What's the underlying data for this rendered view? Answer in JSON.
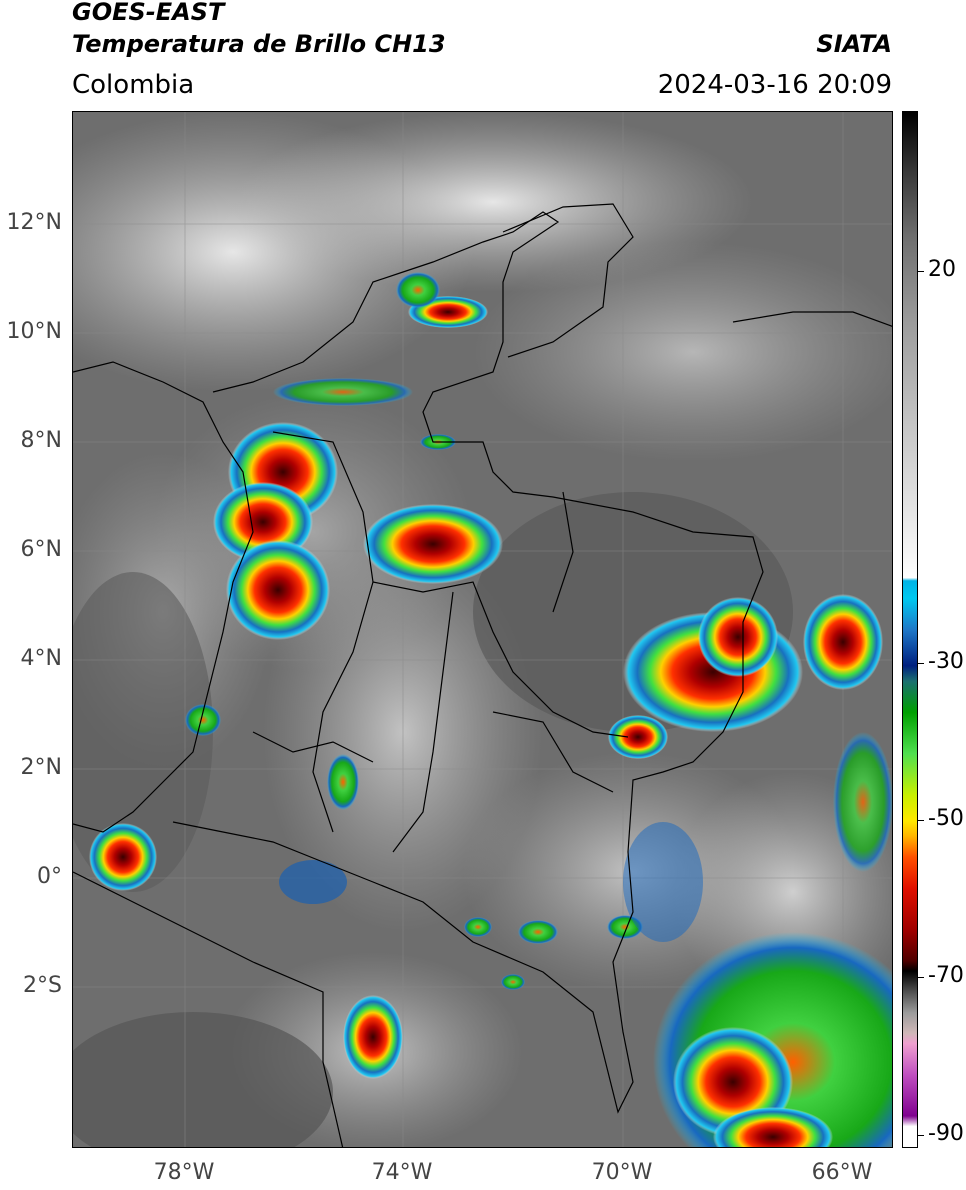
{
  "header": {
    "satellite": "GOES-EAST",
    "product": "Temperatura de Brillo CH13",
    "brand": "SIATA",
    "region": "Colombia",
    "timestamp": "2024-03-16 20:09"
  },
  "axes": {
    "lat_labels": [
      "12°N",
      "10°N",
      "8°N",
      "6°N",
      "4°N",
      "2°N",
      "0°",
      "2°S"
    ],
    "lon_labels": [
      "78°W",
      "74°W",
      "70°W",
      "66°W"
    ]
  },
  "colorbar": {
    "labels": [
      "20",
      "-30",
      "-50",
      "-70",
      "-90"
    ],
    "units_hidden": true
  },
  "colors": {
    "cold_red": "#d00000",
    "cold_green": "#20d020",
    "cold_blue": "#1060c0",
    "land_gray": "#6a6a6a"
  }
}
